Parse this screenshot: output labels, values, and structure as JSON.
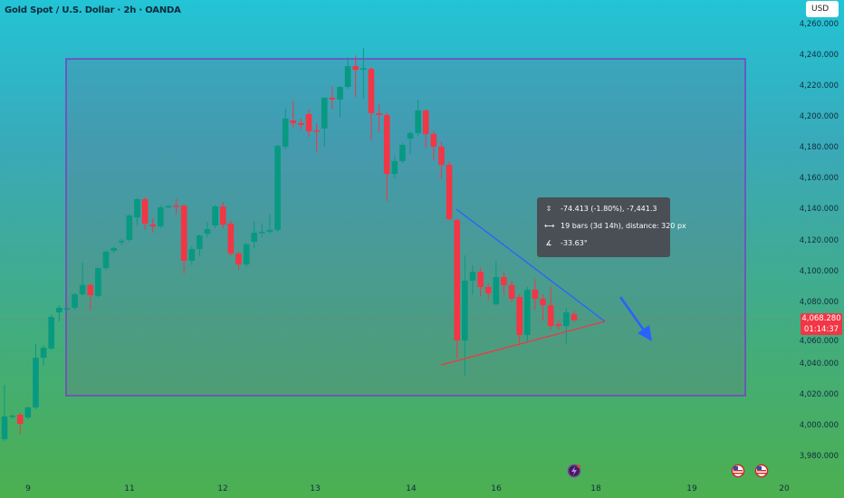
{
  "header": {
    "title": "Gold Spot / U.S. Dollar · 2h · OANDA",
    "currency_button": "USD"
  },
  "price_tag": {
    "price": "4,068.280",
    "countdown": "01:14:37",
    "color": "#f23645"
  },
  "measure_tooltip": {
    "price_change": "-74.413 (-1.80%), -7,441.3",
    "bars": "19 bars (3d 14h), distance: 320 px",
    "angle": "-33.63°"
  },
  "bottom_icons": [
    "lightning-event-icon",
    "us-flag-icon",
    "us-flag-icon"
  ],
  "colors": {
    "up": "#089981",
    "down": "#f23645",
    "rectangle_border": "#7b3fc4",
    "trendline_upper": "#2962ff",
    "trendline_lower": "#f23645",
    "arrow": "#2962ff"
  },
  "chart_data": {
    "type": "candlestick",
    "title": "Gold Spot / U.S. Dollar · 2h · OANDA",
    "ylim": [
      3980,
      4260
    ],
    "y_ticks": [
      "4,260.000",
      "4,240.000",
      "4,220.000",
      "4,200.000",
      "4,180.000",
      "4,160.000",
      "4,140.000",
      "4,120.000",
      "4,100.000",
      "4,080.000",
      "4,060.000",
      "4,040.000",
      "4,020.000",
      "4,000.000",
      "3,980.000"
    ],
    "x_ticks": [
      "9",
      "11",
      "12",
      "13",
      "14",
      "16",
      "18",
      "19",
      "20"
    ],
    "grid": false,
    "candles_ohlc": [
      [
        3991.1,
        4026.4,
        3989.9,
        4005.8
      ],
      [
        4005.8,
        4007.5,
        4004.5,
        4006.4
      ],
      [
        4007.0,
        4008.2,
        3994.1,
        4001.1
      ],
      [
        4005.2,
        4012.5,
        4004.0,
        4011.7
      ],
      [
        4011.7,
        4052.8,
        4010.5,
        4043.9
      ],
      [
        4043.9,
        4052.0,
        4038.7,
        4050.4
      ],
      [
        4049.9,
        4072.0,
        4049.0,
        4070.4
      ],
      [
        4073.3,
        4078.0,
        4067.5,
        4076.3
      ],
      [
        4075.7,
        4076.5,
        4075.0,
        4076.0
      ],
      [
        4076.3,
        4085.7,
        4075.0,
        4085.1
      ],
      [
        4085.1,
        4105.6,
        4084.0,
        4091.0
      ],
      [
        4091.0,
        4092.0,
        4074.5,
        4084.5
      ],
      [
        4083.9,
        4102.5,
        4083.0,
        4102.1
      ],
      [
        4102.1,
        4113.5,
        4101.0,
        4112.7
      ],
      [
        4113.3,
        4116.0,
        4112.0,
        4115.0
      ],
      [
        4119.1,
        4121.0,
        4117.0,
        4119.7
      ],
      [
        4120.3,
        4137.0,
        4119.0,
        4136.1
      ],
      [
        4134.9,
        4147.5,
        4130.0,
        4146.7
      ],
      [
        4146.7,
        4148.0,
        4127.0,
        4130.9
      ],
      [
        4130.3,
        4134.0,
        4125.0,
        4129.1
      ],
      [
        4129.1,
        4142.5,
        4128.0,
        4141.4
      ],
      [
        4142.0,
        4143.0,
        4141.0,
        4142.2
      ],
      [
        4142.6,
        4147.0,
        4137.0,
        4142.4
      ],
      [
        4142.6,
        4143.5,
        4098.6,
        4106.8
      ],
      [
        4106.8,
        4116.0,
        4104.0,
        4114.4
      ],
      [
        4114.4,
        4124.0,
        4110.0,
        4123.2
      ],
      [
        4124.4,
        4132.0,
        4122.0,
        4127.3
      ],
      [
        4129.7,
        4143.0,
        4128.0,
        4142.0
      ],
      [
        4142.0,
        4145.0,
        4128.0,
        4130.3
      ],
      [
        4130.9,
        4133.0,
        4110.0,
        4111.5
      ],
      [
        4111.5,
        4113.0,
        4101.0,
        4104.4
      ],
      [
        4104.4,
        4118.5,
        4103.0,
        4117.4
      ],
      [
        4119.1,
        4132.6,
        4115.0,
        4125.0
      ],
      [
        4125.0,
        4131.0,
        4122.0,
        4125.6
      ],
      [
        4125.6,
        4137.0,
        4124.0,
        4126.8
      ],
      [
        4126.8,
        4182.0,
        4125.5,
        4181.3
      ],
      [
        4180.8,
        4205.4,
        4179.0,
        4199.0
      ],
      [
        4197.8,
        4210.7,
        4193.0,
        4196.0
      ],
      [
        4196.0,
        4199.0,
        4192.0,
        4194.8
      ],
      [
        4201.9,
        4205.0,
        4187.0,
        4190.7
      ],
      [
        4191.3,
        4196.0,
        4177.0,
        4191.0
      ],
      [
        4192.5,
        4212.6,
        4180.8,
        4212.5
      ],
      [
        4212.5,
        4220.0,
        4205.0,
        4211.3
      ],
      [
        4211.3,
        4220.0,
        4200.0,
        4219.5
      ],
      [
        4219.5,
        4238.9,
        4218.0,
        4233.0
      ],
      [
        4233.0,
        4240.0,
        4213.0,
        4230.6
      ],
      [
        4231.2,
        4244.7,
        4212.0,
        4231.6
      ],
      [
        4231.2,
        4232.0,
        4184.9,
        4202.5
      ],
      [
        4202.5,
        4208.0,
        4190.0,
        4201.3
      ],
      [
        4201.3,
        4203.0,
        4145.5,
        4163.1
      ],
      [
        4163.1,
        4175.0,
        4160.0,
        4171.4
      ],
      [
        4171.4,
        4183.0,
        4170.0,
        4181.9
      ],
      [
        4186.0,
        4190.5,
        4176.0,
        4189.6
      ],
      [
        4189.6,
        4211.3,
        4188.0,
        4204.2
      ],
      [
        4204.2,
        4205.0,
        4180.0,
        4189.0
      ],
      [
        4189.0,
        4191.0,
        4172.0,
        4180.8
      ],
      [
        4180.8,
        4184.0,
        4160.0,
        4169.0
      ],
      [
        4169.0,
        4171.0,
        4133.0,
        4133.8
      ],
      [
        4133.2,
        4134.0,
        4043.9,
        4055.1
      ],
      [
        4055.1,
        4110.3,
        4032.2,
        4093.9
      ],
      [
        4093.9,
        4104.0,
        4085.0,
        4099.7
      ],
      [
        4099.7,
        4102.0,
        4083.9,
        4089.8
      ],
      [
        4089.8,
        4092.0,
        4081.0,
        4085.7
      ],
      [
        4078.6,
        4106.8,
        4078.0,
        4096.2
      ],
      [
        4096.2,
        4100.0,
        4085.0,
        4091.0
      ],
      [
        4091.0,
        4094.0,
        4080.0,
        4082.1
      ],
      [
        4083.3,
        4085.0,
        4052.0,
        4058.7
      ],
      [
        4058.7,
        4090.0,
        4054.0,
        4088.0
      ],
      [
        4088.0,
        4095.0,
        4075.0,
        4082.1
      ],
      [
        4082.1,
        4085.0,
        4068.0,
        4078.0
      ],
      [
        4078.0,
        4090.0,
        4062.0,
        4064.5
      ],
      [
        4065.7,
        4068.0,
        4062.0,
        4064.5
      ],
      [
        4064.5,
        4076.0,
        4053.0,
        4073.3
      ],
      [
        4072.2,
        4074.5,
        4067.0,
        4068.3
      ]
    ],
    "last_price": 4068.28
  }
}
